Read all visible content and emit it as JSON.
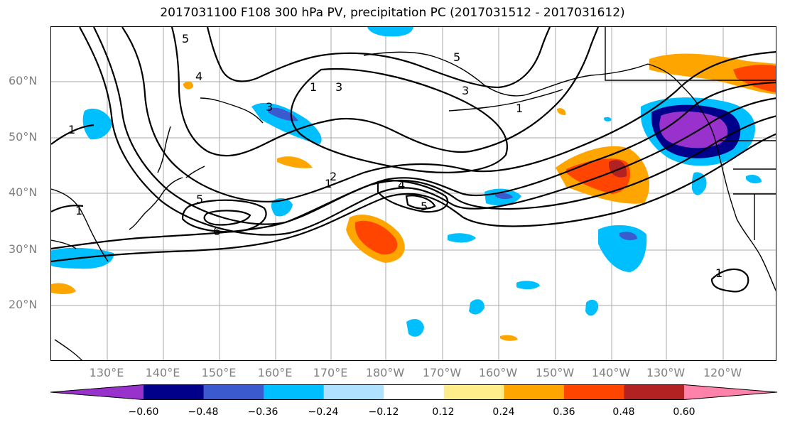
{
  "title": "2017031100 F108 300 hPa PV, precipitation PC (2017031512 - 2017031612)",
  "lat_labels": [
    "60°N",
    "50°N",
    "40°N",
    "30°N",
    "20°N"
  ],
  "lon_labels": [
    "130°E",
    "140°E",
    "150°E",
    "160°E",
    "170°E",
    "180°W",
    "170°W",
    "160°W",
    "150°W",
    "140°W",
    "130°W",
    "120°W"
  ],
  "contour_labels": [
    "5",
    "4",
    "3",
    "1",
    "1",
    "1",
    "3",
    "5",
    "6",
    "2",
    "1",
    "4",
    "5",
    "5",
    "3",
    "1",
    "1"
  ],
  "colorbar": {
    "tick_labels": [
      "−0.60",
      "−0.48",
      "−0.36",
      "−0.24",
      "−0.12",
      "0.12",
      "0.24",
      "0.36",
      "0.48",
      "0.60"
    ],
    "colors": [
      "#9932cc",
      "#00008b",
      "#3a5acd",
      "#00bfff",
      "#b0e2ff",
      "#ffffff",
      "#ffec8b",
      "#ffa500",
      "#ff4500",
      "#b22222",
      "#ff82ab"
    ]
  }
}
